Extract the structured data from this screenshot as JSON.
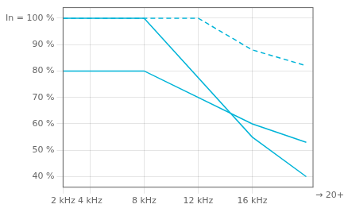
{
  "chart_data": {
    "type": "line",
    "series": [
      {
        "color": "#00b4d8",
        "line_style": "solid",
        "x": [
          2,
          8,
          16,
          20
        ],
        "values": [
          100,
          100,
          55,
          40
        ]
      },
      {
        "color": "#00b4d8",
        "line_style": "dashed",
        "x": [
          2,
          12,
          16,
          20
        ],
        "values": [
          100,
          100,
          88,
          82
        ]
      },
      {
        "color": "#00b4d8",
        "line_style": "solid",
        "x": [
          2,
          8,
          16,
          20
        ],
        "values": [
          80,
          80,
          60,
          53
        ]
      }
    ],
    "xlim": [
      2,
      20.5
    ],
    "xticks": [
      {
        "value": 2,
        "label": "2 kHz"
      },
      {
        "value": 4,
        "label": "4 kHz"
      },
      {
        "value": 8,
        "label": "8 kHz"
      },
      {
        "value": 12,
        "label": "12 kHz"
      },
      {
        "value": 16,
        "label": "16 kHz"
      }
    ],
    "ylim": [
      36,
      104
    ],
    "yticks": [
      {
        "value": 40,
        "label": "40 %"
      },
      {
        "value": 50,
        "label": "50 %"
      },
      {
        "value": 60,
        "label": "60 %"
      },
      {
        "value": 70,
        "label": "70 %"
      },
      {
        "value": 80,
        "label": "80 %"
      },
      {
        "value": 90,
        "label": "90 %"
      },
      {
        "value": 100,
        "label": "In = 100 %"
      }
    ],
    "annotation": "→ 20+",
    "grid": true
  }
}
